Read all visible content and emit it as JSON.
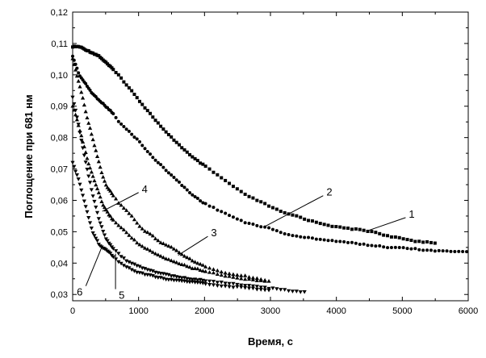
{
  "chart_data": {
    "type": "scatter",
    "title": "",
    "xlabel": "Время, с",
    "ylabel": "Поглощение при 681 нм",
    "xlim": [
      0,
      6000
    ],
    "ylim": [
      0.028,
      0.12
    ],
    "xticks": [
      0,
      1000,
      2000,
      3000,
      4000,
      5000,
      6000
    ],
    "xtick_labels": [
      "0",
      "1000",
      "2000",
      "3000",
      "4000",
      "5000",
      "6000"
    ],
    "yticks": [
      0.03,
      0.04,
      0.05,
      0.06,
      0.07,
      0.08,
      0.09,
      0.1,
      0.11,
      0.12
    ],
    "ytick_labels": [
      "0,03",
      "0,04",
      "0,05",
      "0,06",
      "0,07",
      "0,08",
      "0,09",
      "0,10",
      "0,11",
      "0,12"
    ],
    "grid": false,
    "legend": "none",
    "series": [
      {
        "label": "1",
        "marker": "square",
        "x": [
          0,
          100,
          200,
          300,
          400,
          500,
          600,
          700,
          800,
          900,
          1000,
          1200,
          1400,
          1600,
          1800,
          2000,
          2200,
          2400,
          2600,
          2800,
          3000,
          3200,
          3400,
          3600,
          3800,
          4000,
          4200,
          4400,
          4600,
          4800,
          5000,
          5200,
          5500
        ],
        "y": [
          0.109,
          0.109,
          0.108,
          0.107,
          0.106,
          0.104,
          0.102,
          0.1,
          0.097,
          0.095,
          0.092,
          0.087,
          0.082,
          0.078,
          0.074,
          0.071,
          0.068,
          0.065,
          0.062,
          0.06,
          0.058,
          0.056,
          0.055,
          0.0535,
          0.0525,
          0.0515,
          0.051,
          0.0505,
          0.0498,
          0.0485,
          0.0478,
          0.047,
          0.0465
        ],
        "annotation": {
          "text": "1",
          "at": [
            4500,
            0.0505
          ],
          "label": [
            5050,
            0.0545
          ]
        }
      },
      {
        "label": "2",
        "marker": "circle",
        "x": [
          0,
          100,
          200,
          300,
          400,
          500,
          600,
          700,
          800,
          900,
          1000,
          1200,
          1400,
          1600,
          1800,
          2000,
          2200,
          2400,
          2600,
          2800,
          3000,
          3200,
          3400,
          3600,
          3800,
          4000,
          4200,
          4400,
          4600,
          4800,
          5000,
          5200,
          5400,
          5600,
          5800,
          6000
        ],
        "y": [
          0.106,
          0.1,
          0.097,
          0.094,
          0.092,
          0.09,
          0.088,
          0.085,
          0.083,
          0.081,
          0.079,
          0.074,
          0.07,
          0.066,
          0.062,
          0.059,
          0.057,
          0.055,
          0.053,
          0.052,
          0.051,
          0.0495,
          0.0485,
          0.048,
          0.0475,
          0.047,
          0.0465,
          0.046,
          0.0455,
          0.045,
          0.045,
          0.0445,
          0.044,
          0.044,
          0.0437,
          0.0435
        ],
        "annotation": {
          "text": "2",
          "at": [
            2900,
            0.0515
          ],
          "label": [
            3800,
            0.0615
          ]
        }
      },
      {
        "label": "3",
        "marker": "triangle-up",
        "x": [
          0,
          50,
          100,
          150,
          200,
          250,
          300,
          350,
          400,
          450,
          500,
          600,
          700,
          800,
          900,
          1000,
          1100,
          1200,
          1300,
          1400,
          1500,
          1600,
          1800,
          2000,
          2200,
          2400,
          2600,
          2800,
          2950
        ],
        "y": [
          0.105,
          0.101,
          0.097,
          0.093,
          0.088,
          0.084,
          0.08,
          0.076,
          0.072,
          0.068,
          0.065,
          0.062,
          0.059,
          0.057,
          0.055,
          0.052,
          0.05,
          0.049,
          0.047,
          0.046,
          0.045,
          0.0435,
          0.041,
          0.039,
          0.0375,
          0.0365,
          0.036,
          0.035,
          0.0345
        ],
        "annotation": {
          "text": "3",
          "at": [
            1600,
            0.0425
          ],
          "label": [
            2050,
            0.0485
          ]
        }
      },
      {
        "label": "4",
        "marker": "triangle-up",
        "x": [
          0,
          50,
          100,
          150,
          200,
          250,
          300,
          350,
          400,
          450,
          500,
          600,
          700,
          800,
          900,
          1000,
          1200,
          1400,
          1600,
          1800,
          2000,
          2200,
          2400,
          2600,
          2800,
          3000
        ],
        "y": [
          0.09,
          0.087,
          0.083,
          0.079,
          0.075,
          0.071,
          0.068,
          0.065,
          0.062,
          0.059,
          0.057,
          0.054,
          0.052,
          0.05,
          0.048,
          0.046,
          0.0435,
          0.0415,
          0.04,
          0.0385,
          0.0375,
          0.0365,
          0.0355,
          0.035,
          0.0345,
          0.034
        ],
        "annotation": {
          "text": "4",
          "at": [
            450,
            0.0565
          ],
          "label": [
            1000,
            0.0625
          ]
        }
      },
      {
        "label": "5",
        "marker": "triangle-down",
        "x": [
          0,
          50,
          100,
          150,
          200,
          250,
          300,
          350,
          400,
          450,
          500,
          600,
          700,
          800,
          900,
          1000,
          1200,
          1400,
          1600,
          1800,
          2000,
          2200,
          2400,
          2600,
          2800,
          3000,
          3200,
          3400,
          3550
        ],
        "y": [
          0.093,
          0.088,
          0.083,
          0.077,
          0.072,
          0.067,
          0.062,
          0.058,
          0.054,
          0.051,
          0.048,
          0.045,
          0.043,
          0.041,
          0.04,
          0.039,
          0.0375,
          0.0365,
          0.0355,
          0.035,
          0.0345,
          0.034,
          0.0335,
          0.033,
          0.0325,
          0.032,
          0.0315,
          0.031,
          0.0308
        ],
        "annotation": {
          "text": "5",
          "at": [
            650,
            0.043
          ],
          "label": [
            650,
            0.0317
          ]
        }
      },
      {
        "label": "6",
        "marker": "triangle-down",
        "x": [
          0,
          50,
          100,
          150,
          200,
          250,
          300,
          350,
          400,
          450,
          500,
          600,
          700,
          800,
          900,
          1000,
          1200,
          1400,
          1600,
          1800,
          2000,
          2200,
          2400,
          2600,
          2800,
          3000
        ],
        "y": [
          0.072,
          0.069,
          0.066,
          0.062,
          0.058,
          0.054,
          0.05,
          0.048,
          0.046,
          0.045,
          0.0445,
          0.0425,
          0.0405,
          0.039,
          0.038,
          0.037,
          0.036,
          0.035,
          0.0345,
          0.034,
          0.0335,
          0.033,
          0.0325,
          0.0322,
          0.0318,
          0.0315
        ],
        "annotation": {
          "text": "6",
          "at": [
            450,
            0.0455
          ],
          "label": [
            200,
            0.0327
          ]
        }
      }
    ]
  }
}
